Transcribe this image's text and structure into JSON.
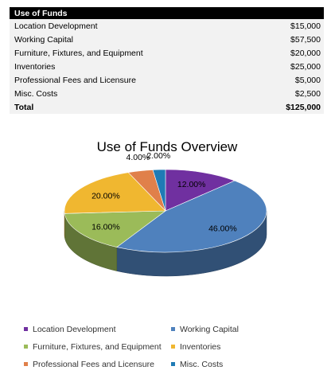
{
  "table": {
    "header": "Use of Funds",
    "rows": [
      {
        "label": "Location Development",
        "amount": "$15,000"
      },
      {
        "label": "Working Capital",
        "amount": "$57,500"
      },
      {
        "label": "Furniture, Fixtures, and Equipment",
        "amount": "$20,000"
      },
      {
        "label": "Inventories",
        "amount": "$25,000"
      },
      {
        "label": "Professional Fees and Licensure",
        "amount": "$5,000"
      },
      {
        "label": "Misc. Costs",
        "amount": "$2,500"
      }
    ],
    "total": {
      "label": "Total",
      "amount": "$125,000"
    }
  },
  "chart_data": {
    "type": "pie",
    "title": "Use of Funds Overview",
    "style": "3d",
    "legend_position": "bottom",
    "categories": [
      "Location Development",
      "Working Capital",
      "Furniture, Fixtures, and Equipment",
      "Inventories",
      "Professional Fees and Licensure",
      "Misc. Costs"
    ],
    "values": [
      12,
      46,
      16,
      20,
      4,
      2
    ],
    "labels": [
      "12.00%",
      "46.00%",
      "16.00%",
      "20.00%",
      "4.00%",
      "2.00%"
    ],
    "colors": [
      "#7030a0",
      "#4f81bd",
      "#9bbb59",
      "#f0b730",
      "#e0804a",
      "#1f7bb5"
    ]
  }
}
